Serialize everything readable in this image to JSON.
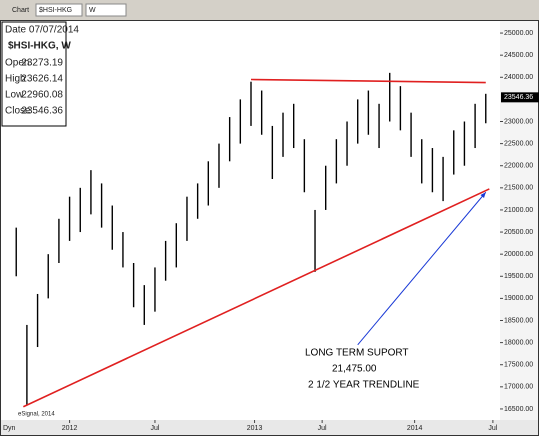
{
  "toolbar": {
    "menu": "Chart",
    "symbol": "$HSI-HKG",
    "interval": "W"
  },
  "info": {
    "date_label": "Date 07/07/2014",
    "symbol_label": "$HSI-HKG, W",
    "open_label": "Open",
    "open": 23273.19,
    "high_label": "High",
    "high": 23626.14,
    "low_label": "Low",
    "low": 22960.08,
    "close_label": "Close",
    "close": 23546.36
  },
  "footer": {
    "mode": "Dyn",
    "credit": "eSignal, 2014"
  },
  "chart_data": {
    "type": "ohlc",
    "x": [
      0,
      3,
      6,
      9,
      12,
      15,
      18,
      21,
      24,
      27,
      30,
      33,
      36,
      39,
      42,
      45,
      48,
      51,
      54,
      57,
      60,
      63,
      66,
      69,
      72,
      75,
      78,
      81,
      84,
      87,
      90,
      93,
      96,
      99,
      102,
      105,
      108,
      111,
      114,
      117,
      120,
      123,
      126,
      129,
      132
    ],
    "high": [
      20600,
      18400,
      19100,
      20000,
      20800,
      21300,
      21500,
      21900,
      21600,
      21100,
      20500,
      19800,
      19300,
      19700,
      20300,
      20700,
      21300,
      21600,
      22100,
      22500,
      23100,
      23500,
      23900,
      23700,
      22900,
      23200,
      23400,
      22600,
      21000,
      22000,
      22600,
      23000,
      23500,
      23700,
      23400,
      24100,
      23800,
      23200,
      22600,
      22400,
      22200,
      22800,
      23000,
      23400,
      23626.14
    ],
    "low": [
      19500,
      16600,
      17900,
      19000,
      19800,
      20300,
      20500,
      20900,
      20600,
      20100,
      19700,
      18800,
      18400,
      18700,
      19400,
      19700,
      20300,
      20800,
      21100,
      21500,
      22100,
      22500,
      22900,
      22700,
      21700,
      22200,
      22400,
      21400,
      19600,
      21000,
      21600,
      22000,
      22500,
      22700,
      22400,
      23000,
      22800,
      22200,
      21600,
      21400,
      21200,
      21800,
      22000,
      22400,
      22960.08
    ],
    "color": "#000000",
    "xlim": [
      -4,
      136
    ],
    "xticks": [
      {
        "value": 15,
        "label": "2012"
      },
      {
        "value": 39,
        "label": "Jul"
      },
      {
        "value": 67,
        "label": "2013"
      },
      {
        "value": 86,
        "label": "Jul"
      },
      {
        "value": 112,
        "label": "2014"
      },
      {
        "value": 134,
        "label": "Jul"
      }
    ],
    "ylim": [
      16250,
      25250
    ],
    "yticks": [
      {
        "value": 16500,
        "label": "16500.00"
      },
      {
        "value": 17000,
        "label": "17000.00"
      },
      {
        "value": 17500,
        "label": "17500.00"
      },
      {
        "value": 18000,
        "label": "18000.00"
      },
      {
        "value": 18500,
        "label": "18500.00"
      },
      {
        "value": 19000,
        "label": "19000.00"
      },
      {
        "value": 19500,
        "label": "19500.00"
      },
      {
        "value": 20000,
        "label": "20000.00"
      },
      {
        "value": 20500,
        "label": "20500.00"
      },
      {
        "value": 21000,
        "label": "21000.00"
      },
      {
        "value": 21500,
        "label": "21500.00"
      },
      {
        "value": 22000,
        "label": "22000.00"
      },
      {
        "value": 22500,
        "label": "22500.00"
      },
      {
        "value": 23000,
        "label": "23000.00"
      },
      {
        "value": 24000,
        "label": "24000.00"
      },
      {
        "value": 24500,
        "label": "24500.00"
      },
      {
        "value": 25000,
        "label": "25000.00"
      }
    ],
    "trendlines": [
      {
        "x": [
          2,
          133
        ],
        "values": [
          16550,
          21475
        ],
        "color": "#e02020"
      },
      {
        "x": [
          66,
          132
        ],
        "values": [
          23950,
          23880
        ],
        "color": "#e02020"
      },
      {
        "x": [
          96,
          132
        ],
        "values": [
          17950,
          21400
        ],
        "color": "#1a3ad6"
      }
    ],
    "annotations": [
      "LONG TERM SUPORT",
      "21,475.00",
      "2 1/2 YEAR TRENDLINE"
    ]
  }
}
